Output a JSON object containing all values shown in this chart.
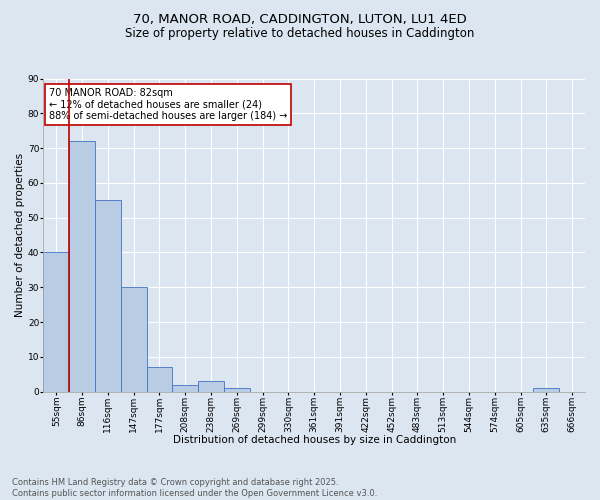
{
  "title_line1": "70, MANOR ROAD, CADDINGTON, LUTON, LU1 4ED",
  "title_line2": "Size of property relative to detached houses in Caddington",
  "xlabel": "Distribution of detached houses by size in Caddington",
  "ylabel": "Number of detached properties",
  "categories": [
    "55sqm",
    "86sqm",
    "116sqm",
    "147sqm",
    "177sqm",
    "208sqm",
    "238sqm",
    "269sqm",
    "299sqm",
    "330sqm",
    "361sqm",
    "391sqm",
    "422sqm",
    "452sqm",
    "483sqm",
    "513sqm",
    "544sqm",
    "574sqm",
    "605sqm",
    "635sqm",
    "666sqm"
  ],
  "values": [
    40,
    72,
    55,
    30,
    7,
    2,
    3,
    1,
    0,
    0,
    0,
    0,
    0,
    0,
    0,
    0,
    0,
    0,
    0,
    1,
    0
  ],
  "bar_color": "#b8cce4",
  "bar_edge_color": "#4472c4",
  "background_color": "#dce6f1",
  "grid_color": "#ffffff",
  "vline_color": "#c00000",
  "annotation_text": "70 MANOR ROAD: 82sqm\n← 12% of detached houses are smaller (24)\n88% of semi-detached houses are larger (184) →",
  "annotation_box_color": "#ffffff",
  "annotation_box_edge_color": "#c00000",
  "ylim": [
    0,
    90
  ],
  "yticks": [
    0,
    10,
    20,
    30,
    40,
    50,
    60,
    70,
    80,
    90
  ],
  "footer_line1": "Contains HM Land Registry data © Crown copyright and database right 2025.",
  "footer_line2": "Contains public sector information licensed under the Open Government Licence v3.0.",
  "title_fontsize": 9.5,
  "subtitle_fontsize": 8.5,
  "axis_label_fontsize": 7.5,
  "tick_fontsize": 6.5,
  "annotation_fontsize": 7,
  "footer_fontsize": 6
}
